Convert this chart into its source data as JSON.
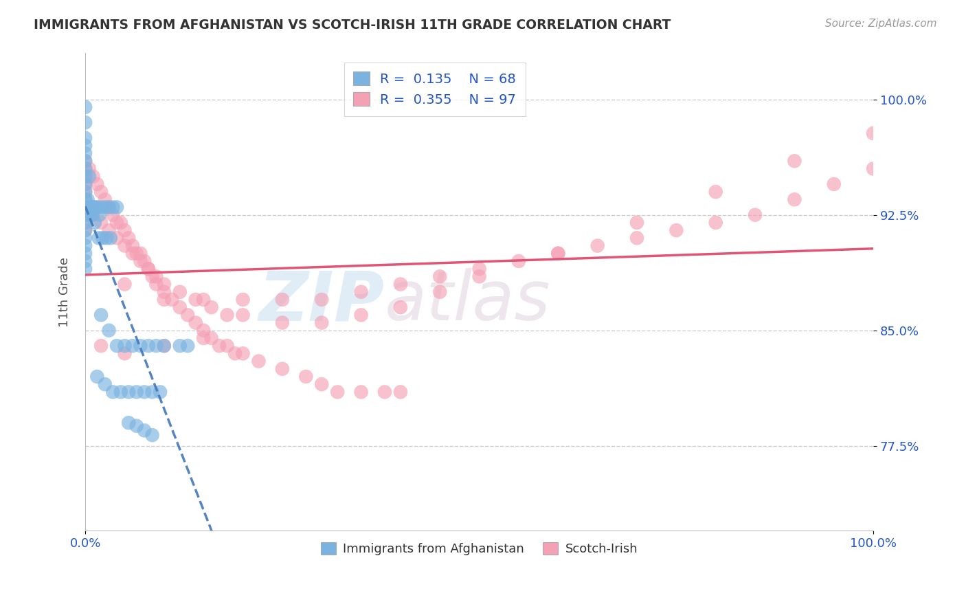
{
  "title": "IMMIGRANTS FROM AFGHANISTAN VS SCOTCH-IRISH 11TH GRADE CORRELATION CHART",
  "source_text": "Source: ZipAtlas.com",
  "ylabel": "11th Grade",
  "xlim": [
    0.0,
    1.0
  ],
  "ylim": [
    0.72,
    1.03
  ],
  "x_tick_positions": [
    0.0,
    1.0
  ],
  "x_tick_labels": [
    "0.0%",
    "100.0%"
  ],
  "y_tick_positions": [
    0.775,
    0.85,
    0.925,
    1.0
  ],
  "y_tick_labels": [
    "77.5%",
    "85.0%",
    "92.5%",
    "100.0%"
  ],
  "afghanistan_R": 0.135,
  "afghanistan_N": 68,
  "scotch_irish_R": 0.355,
  "scotch_irish_N": 97,
  "afghanistan_color": "#7ab3e0",
  "scotch_irish_color": "#f4a0b5",
  "trend_afghanistan_color": "#4477bb",
  "trend_scotch_irish_color": "#e05575",
  "legend_box_color": "#7ab3e0",
  "legend_box_color2": "#f4a0b5",
  "legend_text_color": "#2255cc",
  "axis_label_color": "#2255cc",
  "title_color": "#333333",
  "source_color": "#999999",
  "watermark_color": "#c8dff0",
  "watermark_color2": "#d8c8d8",
  "background_color": "#ffffff",
  "grid_color": "#cccccc",
  "grid_style": "--",
  "afghanistan_x": [
    0.0,
    0.0,
    0.0,
    0.0,
    0.0,
    0.0,
    0.0,
    0.0,
    0.0,
    0.0,
    0.0,
    0.0,
    0.0,
    0.0,
    0.0,
    0.0,
    0.0,
    0.0,
    0.0,
    0.0,
    0.003,
    0.004,
    0.005,
    0.006,
    0.007,
    0.008,
    0.009,
    0.01,
    0.01,
    0.012,
    0.015,
    0.018,
    0.02,
    0.025,
    0.03,
    0.035,
    0.04,
    0.02,
    0.03,
    0.04,
    0.05,
    0.06,
    0.07,
    0.08,
    0.09,
    0.1,
    0.12,
    0.13,
    0.015,
    0.025,
    0.035,
    0.045,
    0.055,
    0.065,
    0.075,
    0.085,
    0.095,
    0.055,
    0.065,
    0.075,
    0.085,
    0.005,
    0.008,
    0.012,
    0.017,
    0.022,
    0.027,
    0.032
  ],
  "afghanistan_y": [
    0.995,
    0.985,
    0.975,
    0.97,
    0.965,
    0.96,
    0.955,
    0.95,
    0.945,
    0.94,
    0.935,
    0.93,
    0.925,
    0.92,
    0.915,
    0.91,
    0.905,
    0.9,
    0.895,
    0.89,
    0.935,
    0.93,
    0.925,
    0.93,
    0.925,
    0.93,
    0.925,
    0.93,
    0.93,
    0.93,
    0.93,
    0.925,
    0.93,
    0.93,
    0.93,
    0.93,
    0.93,
    0.86,
    0.85,
    0.84,
    0.84,
    0.84,
    0.84,
    0.84,
    0.84,
    0.84,
    0.84,
    0.84,
    0.82,
    0.815,
    0.81,
    0.81,
    0.81,
    0.81,
    0.81,
    0.81,
    0.81,
    0.79,
    0.788,
    0.785,
    0.782,
    0.95,
    0.93,
    0.92,
    0.91,
    0.91,
    0.91,
    0.91
  ],
  "scotch_irish_x": [
    0.0,
    0.0,
    0.0,
    0.0,
    0.0,
    0.0,
    0.0,
    0.0,
    0.0,
    0.0,
    0.005,
    0.01,
    0.015,
    0.02,
    0.025,
    0.03,
    0.035,
    0.04,
    0.045,
    0.05,
    0.055,
    0.06,
    0.065,
    0.07,
    0.075,
    0.08,
    0.085,
    0.09,
    0.1,
    0.11,
    0.12,
    0.13,
    0.14,
    0.15,
    0.16,
    0.17,
    0.18,
    0.19,
    0.2,
    0.22,
    0.25,
    0.28,
    0.3,
    0.32,
    0.35,
    0.38,
    0.4,
    0.01,
    0.02,
    0.03,
    0.04,
    0.05,
    0.06,
    0.07,
    0.08,
    0.09,
    0.1,
    0.12,
    0.14,
    0.16,
    0.18,
    0.2,
    0.25,
    0.3,
    0.35,
    0.4,
    0.45,
    0.5,
    0.6,
    0.7,
    0.8,
    0.9,
    1.0,
    0.05,
    0.1,
    0.15,
    0.2,
    0.25,
    0.3,
    0.35,
    0.4,
    0.45,
    0.5,
    0.55,
    0.6,
    0.65,
    0.7,
    0.75,
    0.8,
    0.85,
    0.9,
    0.95,
    1.0,
    0.02,
    0.05,
    0.1,
    0.15
  ],
  "scotch_irish_y": [
    0.96,
    0.955,
    0.95,
    0.945,
    0.94,
    0.935,
    0.93,
    0.925,
    0.92,
    0.915,
    0.955,
    0.95,
    0.945,
    0.94,
    0.935,
    0.93,
    0.925,
    0.92,
    0.92,
    0.915,
    0.91,
    0.905,
    0.9,
    0.9,
    0.895,
    0.89,
    0.885,
    0.88,
    0.875,
    0.87,
    0.865,
    0.86,
    0.855,
    0.85,
    0.845,
    0.84,
    0.84,
    0.835,
    0.835,
    0.83,
    0.825,
    0.82,
    0.815,
    0.81,
    0.81,
    0.81,
    0.81,
    0.925,
    0.92,
    0.915,
    0.91,
    0.905,
    0.9,
    0.895,
    0.89,
    0.885,
    0.88,
    0.875,
    0.87,
    0.865,
    0.86,
    0.86,
    0.855,
    0.855,
    0.86,
    0.865,
    0.875,
    0.885,
    0.9,
    0.92,
    0.94,
    0.96,
    0.978,
    0.88,
    0.87,
    0.87,
    0.87,
    0.87,
    0.87,
    0.875,
    0.88,
    0.885,
    0.89,
    0.895,
    0.9,
    0.905,
    0.91,
    0.915,
    0.92,
    0.925,
    0.935,
    0.945,
    0.955,
    0.84,
    0.835,
    0.84,
    0.845
  ]
}
